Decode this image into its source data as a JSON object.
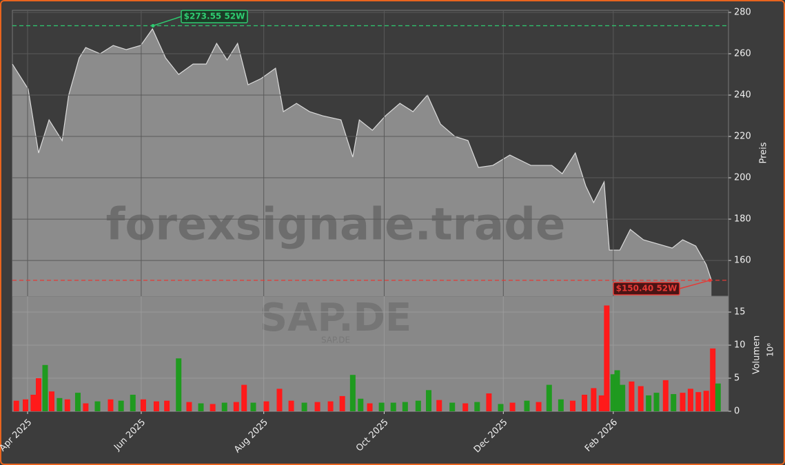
{
  "chart_data": {
    "type": "stock",
    "watermark": "forexsignale.trade",
    "symbol": "SAP.DE",
    "symbol_sub": "SAP.DE",
    "ylabel": "Preis",
    "y2label": "Volumen",
    "y2exponent": "10⁶",
    "xlim": [
      0,
      54.7
    ],
    "xticks": [
      {
        "value": 1.16,
        "label": "Apr 2025"
      },
      {
        "value": 9.84,
        "label": "Jun 2025"
      },
      {
        "value": 19.2,
        "label": "Aug 2025"
      },
      {
        "value": 28.4,
        "label": "Oct 2025"
      },
      {
        "value": 37.5,
        "label": "Dec 2025"
      },
      {
        "value": 45.9,
        "label": "Feb 2026"
      }
    ],
    "ylim": [
      142.7,
      281
    ],
    "yticks": [
      160,
      180,
      200,
      220,
      240,
      260,
      280
    ],
    "y2lim": [
      0,
      17.4
    ],
    "y2ticks": [
      0,
      5,
      10,
      15
    ],
    "grid": true,
    "price": {
      "color": "#8c8c8c",
      "x": [
        0,
        1.2,
        2,
        2.8,
        3.8,
        4.3,
        5.1,
        5.6,
        6.7,
        7.7,
        8.7,
        9.8,
        10.7,
        11.7,
        12.7,
        13.8,
        14.8,
        15.6,
        16.4,
        17.2,
        18,
        19,
        20.1,
        20.7,
        21.7,
        22.7,
        23.7,
        25.1,
        26,
        26.5,
        27.5,
        28.5,
        29.6,
        30.6,
        31.7,
        32.7,
        33.8,
        34.8,
        35.6,
        36.7,
        38,
        39.6,
        41.2,
        42,
        43,
        43.8,
        44.4,
        45.2,
        45.6,
        46.4,
        47.2,
        48.2,
        49.3,
        50.4,
        51.2,
        52.2,
        53,
        53.4
      ],
      "values": [
        255,
        243,
        212,
        228,
        218,
        240,
        258,
        263,
        260,
        264,
        262,
        264,
        272,
        258,
        250,
        255,
        255,
        265,
        257,
        265,
        245,
        248,
        253,
        232,
        236,
        232,
        230,
        228,
        210,
        228,
        223,
        230,
        236,
        232,
        240,
        226,
        220,
        218,
        205,
        206,
        211,
        206,
        206,
        202,
        212,
        196,
        188,
        198,
        165,
        165,
        175,
        170,
        168,
        166,
        170,
        167,
        158,
        150.4
      ]
    },
    "volume": {
      "x": [
        0.3,
        1,
        1.6,
        2,
        2.5,
        3,
        3.6,
        4.2,
        5,
        5.6,
        6.5,
        7.5,
        8.3,
        9.2,
        10,
        11,
        11.8,
        12.7,
        13.5,
        14.4,
        15.3,
        16.2,
        17.1,
        17.7,
        18.4,
        19.4,
        20.4,
        21.3,
        22.3,
        23.3,
        24.3,
        25.2,
        26,
        26.6,
        27.3,
        28.2,
        29.1,
        30,
        31,
        31.8,
        32.6,
        33.6,
        34.6,
        35.5,
        36.4,
        37.3,
        38.2,
        39.3,
        40.2,
        41,
        41.9,
        42.8,
        43.7,
        44.4,
        45,
        45.4,
        45.9,
        46.2,
        46.6,
        47.3,
        48,
        48.6,
        49.2,
        49.9,
        50.5,
        51.2,
        51.8,
        52.4,
        53,
        53.5,
        53.9
      ],
      "values": [
        1.6,
        1.8,
        2.5,
        5,
        7,
        3,
        2,
        1.8,
        2.8,
        1.2,
        1.5,
        1.8,
        1.6,
        2.5,
        1.8,
        1.5,
        1.6,
        8,
        1.4,
        1.2,
        1.1,
        1.3,
        1.4,
        4,
        1.3,
        1.5,
        3.4,
        1.6,
        1.3,
        1.4,
        1.5,
        2.3,
        5.5,
        1.9,
        1.2,
        1.3,
        1.3,
        1.4,
        1.6,
        3.2,
        1.7,
        1.3,
        1.2,
        1.4,
        2.7,
        1.1,
        1.3,
        1.6,
        1.4,
        4,
        1.8,
        1.6,
        2.5,
        3.5,
        2.4,
        16,
        5.6,
        6.2,
        4,
        4.5,
        3.8,
        2.4,
        2.8,
        4.7,
        2.6,
        2.8,
        3.4,
        2.9,
        3.1,
        9.5,
        4.2
      ],
      "colors": [
        "#ff1a1a",
        "#ff1a1a",
        "#ff1a1a",
        "#ff1a1a",
        "#1f9a1f",
        "#ff1a1a",
        "#1f9a1f",
        "#ff1a1a",
        "#1f9a1f",
        "#ff1a1a",
        "#1f9a1f",
        "#ff1a1a",
        "#1f9a1f",
        "#1f9a1f",
        "#ff1a1a",
        "#ff1a1a",
        "#ff1a1a",
        "#1f9a1f",
        "#ff1a1a",
        "#1f9a1f",
        "#ff1a1a",
        "#1f9a1f",
        "#ff1a1a",
        "#ff1a1a",
        "#1f9a1f",
        "#ff1a1a",
        "#ff1a1a",
        "#ff1a1a",
        "#1f9a1f",
        "#ff1a1a",
        "#ff1a1a",
        "#ff1a1a",
        "#1f9a1f",
        "#1f9a1f",
        "#ff1a1a",
        "#1f9a1f",
        "#1f9a1f",
        "#1f9a1f",
        "#1f9a1f",
        "#1f9a1f",
        "#ff1a1a",
        "#1f9a1f",
        "#ff1a1a",
        "#1f9a1f",
        "#ff1a1a",
        "#1f9a1f",
        "#ff1a1a",
        "#1f9a1f",
        "#ff1a1a",
        "#1f9a1f",
        "#1f9a1f",
        "#ff1a1a",
        "#ff1a1a",
        "#ff1a1a",
        "#ff1a1a",
        "#ff1a1a",
        "#1f9a1f",
        "#1f9a1f",
        "#1f9a1f",
        "#ff1a1a",
        "#ff1a1a",
        "#1f9a1f",
        "#1f9a1f",
        "#ff1a1a",
        "#1f9a1f",
        "#ff1a1a",
        "#ff1a1a",
        "#ff1a1a",
        "#ff1a1a",
        "#ff1a1a",
        "#1f9a1f"
      ]
    },
    "high": {
      "value": 273.55,
      "label": "$273.55 52W",
      "color": "#2ecc71"
    },
    "low": {
      "value": 150.4,
      "label": "$150.40 52W",
      "color": "#e53935"
    }
  }
}
